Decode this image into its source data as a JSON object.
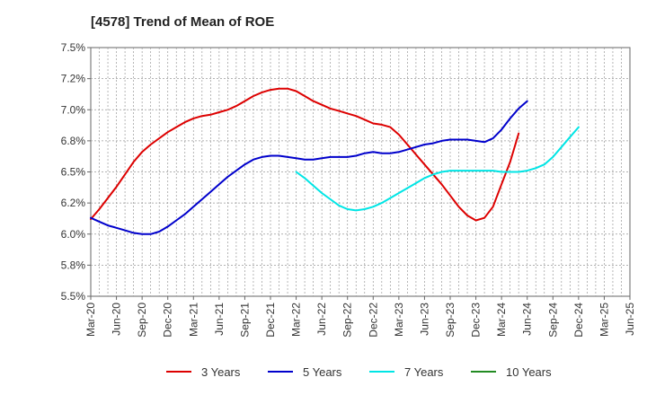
{
  "chart_data": {
    "type": "line",
    "title": "[4578]  Trend of Mean of ROE",
    "xlabel": "",
    "ylabel": "",
    "x_tick_labels": [
      "Mar-20",
      "Jun-20",
      "Sep-20",
      "Dec-20",
      "Mar-21",
      "Jun-21",
      "Sep-21",
      "Dec-21",
      "Mar-22",
      "Jun-22",
      "Sep-22",
      "Dec-22",
      "Mar-23",
      "Jun-23",
      "Sep-23",
      "Dec-23",
      "Mar-24",
      "Jun-24",
      "Sep-24",
      "Dec-24",
      "Mar-25",
      "Jun-25"
    ],
    "y_tick_labels": [
      "7.5%",
      "7.2%",
      "7.0%",
      "6.8%",
      "6.5%",
      "6.2%",
      "6.0%",
      "5.8%",
      "5.5%"
    ],
    "ylim": [
      5.5,
      7.5
    ],
    "grid": true,
    "legend_position": "bottom",
    "series": [
      {
        "name": "3 Years",
        "color": "#dd0000",
        "points": [
          [
            0,
            6.12
          ],
          [
            1,
            6.2
          ],
          [
            2,
            6.29
          ],
          [
            3,
            6.38
          ],
          [
            4,
            6.48
          ],
          [
            5,
            6.58
          ],
          [
            6,
            6.66
          ],
          [
            7,
            6.72
          ],
          [
            8,
            6.77
          ],
          [
            9,
            6.82
          ],
          [
            10,
            6.86
          ],
          [
            11,
            6.9
          ],
          [
            12,
            6.93
          ],
          [
            13,
            6.95
          ],
          [
            14,
            6.96
          ],
          [
            15,
            6.98
          ],
          [
            16,
            7.0
          ],
          [
            17,
            7.03
          ],
          [
            18,
            7.07
          ],
          [
            19,
            7.11
          ],
          [
            20,
            7.14
          ],
          [
            21,
            7.16
          ],
          [
            22,
            7.17
          ],
          [
            23,
            7.17
          ],
          [
            24,
            7.15
          ],
          [
            25,
            7.11
          ],
          [
            26,
            7.07
          ],
          [
            27,
            7.04
          ],
          [
            28,
            7.01
          ],
          [
            29,
            6.99
          ],
          [
            30,
            6.97
          ],
          [
            31,
            6.95
          ],
          [
            32,
            6.92
          ],
          [
            33,
            6.89
          ],
          [
            34,
            6.88
          ],
          [
            35,
            6.86
          ],
          [
            36,
            6.8
          ],
          [
            37,
            6.72
          ],
          [
            38,
            6.64
          ],
          [
            39,
            6.56
          ],
          [
            40,
            6.48
          ],
          [
            41,
            6.4
          ],
          [
            42,
            6.31
          ],
          [
            43,
            6.22
          ],
          [
            44,
            6.15
          ],
          [
            45,
            6.11
          ],
          [
            46,
            6.13
          ],
          [
            47,
            6.22
          ],
          [
            48,
            6.4
          ],
          [
            49,
            6.58
          ],
          [
            50,
            6.81
          ]
        ]
      },
      {
        "name": "5 Years",
        "color": "#0000cc",
        "points": [
          [
            0,
            6.13
          ],
          [
            1,
            6.1
          ],
          [
            2,
            6.07
          ],
          [
            3,
            6.05
          ],
          [
            4,
            6.03
          ],
          [
            5,
            6.01
          ],
          [
            6,
            6.0
          ],
          [
            7,
            6.0
          ],
          [
            8,
            6.02
          ],
          [
            9,
            6.06
          ],
          [
            10,
            6.11
          ],
          [
            11,
            6.16
          ],
          [
            12,
            6.22
          ],
          [
            13,
            6.28
          ],
          [
            14,
            6.34
          ],
          [
            15,
            6.4
          ],
          [
            16,
            6.46
          ],
          [
            17,
            6.51
          ],
          [
            18,
            6.56
          ],
          [
            19,
            6.6
          ],
          [
            20,
            6.62
          ],
          [
            21,
            6.63
          ],
          [
            22,
            6.63
          ],
          [
            23,
            6.62
          ],
          [
            24,
            6.61
          ],
          [
            25,
            6.6
          ],
          [
            26,
            6.6
          ],
          [
            27,
            6.61
          ],
          [
            28,
            6.62
          ],
          [
            29,
            6.62
          ],
          [
            30,
            6.62
          ],
          [
            31,
            6.63
          ],
          [
            32,
            6.65
          ],
          [
            33,
            6.66
          ],
          [
            34,
            6.65
          ],
          [
            35,
            6.65
          ],
          [
            36,
            6.66
          ],
          [
            37,
            6.68
          ],
          [
            38,
            6.7
          ],
          [
            39,
            6.72
          ],
          [
            40,
            6.73
          ],
          [
            41,
            6.75
          ],
          [
            42,
            6.76
          ],
          [
            43,
            6.76
          ],
          [
            44,
            6.76
          ],
          [
            45,
            6.75
          ],
          [
            46,
            6.74
          ],
          [
            47,
            6.77
          ],
          [
            48,
            6.84
          ],
          [
            49,
            6.93
          ],
          [
            50,
            7.01
          ],
          [
            51,
            7.07
          ]
        ]
      },
      {
        "name": "7 Years",
        "color": "#00e5e5",
        "points": [
          [
            24,
            6.5
          ],
          [
            25,
            6.45
          ],
          [
            26,
            6.39
          ],
          [
            27,
            6.33
          ],
          [
            28,
            6.28
          ],
          [
            29,
            6.23
          ],
          [
            30,
            6.2
          ],
          [
            31,
            6.19
          ],
          [
            32,
            6.2
          ],
          [
            33,
            6.22
          ],
          [
            34,
            6.25
          ],
          [
            35,
            6.29
          ],
          [
            36,
            6.33
          ],
          [
            37,
            6.37
          ],
          [
            38,
            6.41
          ],
          [
            39,
            6.45
          ],
          [
            40,
            6.48
          ],
          [
            41,
            6.5
          ],
          [
            42,
            6.51
          ],
          [
            43,
            6.51
          ],
          [
            44,
            6.51
          ],
          [
            45,
            6.51
          ],
          [
            46,
            6.51
          ],
          [
            47,
            6.51
          ],
          [
            48,
            6.5
          ],
          [
            49,
            6.5
          ],
          [
            50,
            6.5
          ],
          [
            51,
            6.51
          ],
          [
            52,
            6.53
          ],
          [
            53,
            6.56
          ],
          [
            54,
            6.62
          ],
          [
            55,
            6.7
          ],
          [
            56,
            6.78
          ],
          [
            57,
            6.86
          ]
        ]
      },
      {
        "name": "10 Years",
        "color": "#228b22",
        "points": []
      }
    ]
  }
}
